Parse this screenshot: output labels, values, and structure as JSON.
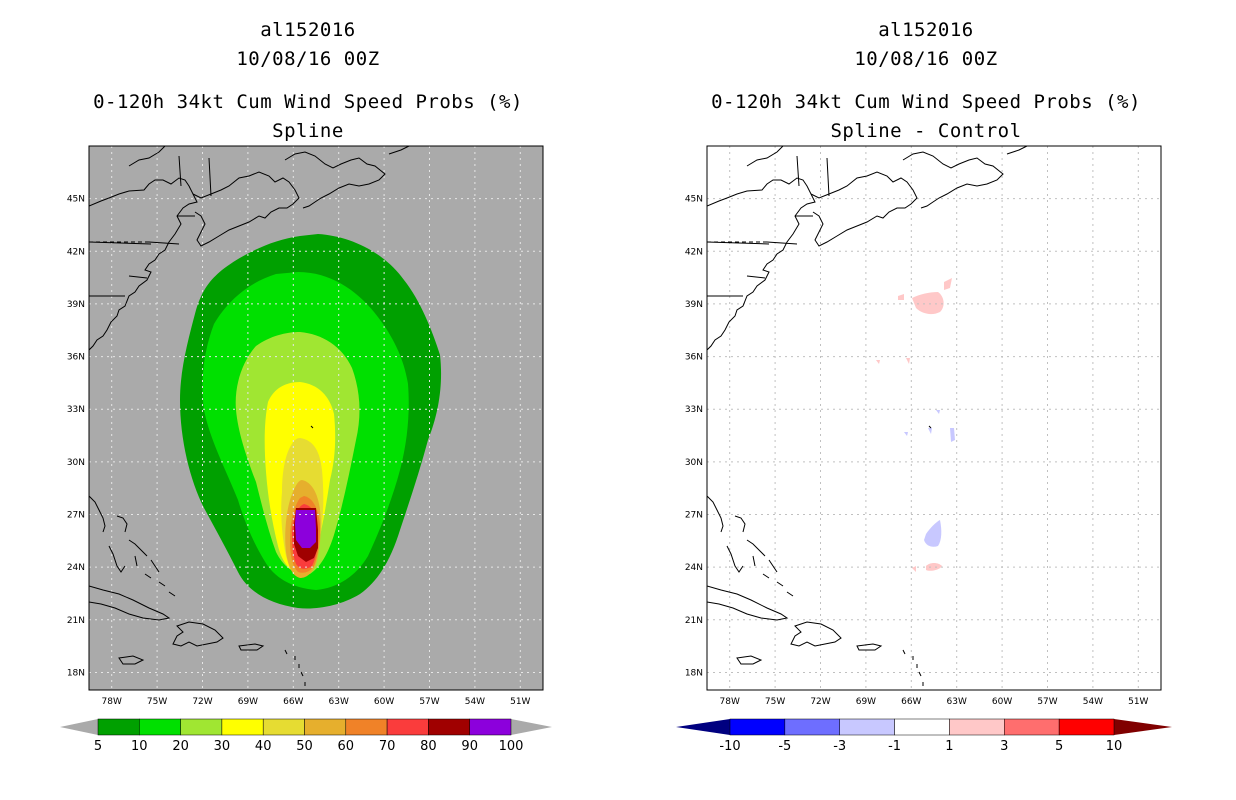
{
  "left_panel": {
    "storm_id": "al152016",
    "datetime": "10/08/16 00Z",
    "product": "0-120h 34kt Cum Wind Speed Probs (%)",
    "subtitle": "Spline",
    "background_color": "#aaaaaa",
    "colorbar_labels": [
      "5",
      "10",
      "20",
      "30",
      "40",
      "50",
      "60",
      "70",
      "80",
      "90",
      "100"
    ],
    "colorbar_colors": [
      "#00a000",
      "#00e000",
      "#a0e632",
      "#ffff00",
      "#e6dc32",
      "#e6af2d",
      "#f08228",
      "#fa3c3c",
      "#a00000",
      "#8c00dc"
    ]
  },
  "right_panel": {
    "storm_id": "al152016",
    "datetime": "10/08/16 00Z",
    "product": "0-120h 34kt Cum Wind Speed Probs (%)",
    "subtitle": "Spline - Control",
    "background_color": "#ffffff",
    "colorbar_labels": [
      "-10",
      "-5",
      "-3",
      "-1",
      "1",
      "3",
      "5",
      "10"
    ],
    "colorbar_colors": [
      "#0000ff",
      "#6e6eff",
      "#c8c8ff",
      "#ffffff",
      "#ffc8c8",
      "#ff6e6e",
      "#ff0000"
    ],
    "colorbar_end_colors": [
      "#000080",
      "#800000"
    ]
  },
  "axes": {
    "lon_labels": [
      "78W",
      "75W",
      "72W",
      "69W",
      "66W",
      "63W",
      "60W",
      "57W",
      "54W",
      "51W"
    ],
    "lat_labels": [
      "45N",
      "42N",
      "39N",
      "36N",
      "33N",
      "30N",
      "27N",
      "24N",
      "21N",
      "18N"
    ]
  },
  "map_domain": {
    "lon_range": [
      -79.5,
      -49.5
    ],
    "lat_range": [
      17.0,
      48.0
    ],
    "grid_lon_step": 3,
    "grid_lat_step": 3
  }
}
